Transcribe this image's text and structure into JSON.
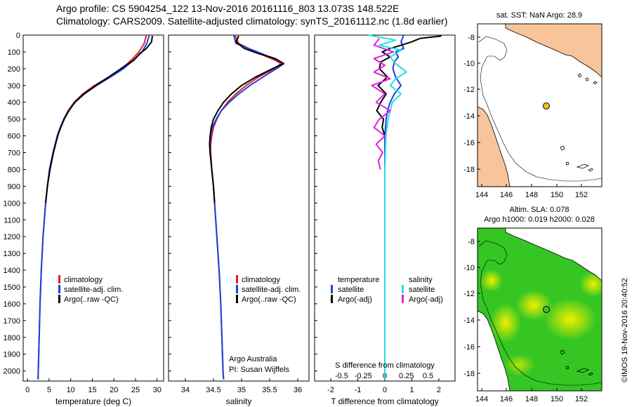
{
  "header": {
    "line1": "Argo profile: CS 5904254_122 13-Nov-2016 20161116_803 13.073S 148.522E",
    "line2": "Climatology: CARS2009. Satellite-adjusted climatology: synTS_20161112.nc (1.8d earlier)"
  },
  "colors": {
    "clim": "#e8201c",
    "sat": "#1f3fe0",
    "argo": "#000000",
    "cyan": "#22e0e8",
    "magenta": "#e020e0",
    "land": "#f8c59a",
    "field_green": "#2ec21e",
    "field_yellow": "#f0f000"
  },
  "depth_axis": {
    "ticks": [
      0,
      100,
      200,
      300,
      400,
      500,
      600,
      700,
      800,
      900,
      1000,
      1100,
      1200,
      1300,
      1400,
      1500,
      1600,
      1700,
      1800,
      1900,
      2000
    ],
    "range": [
      0,
      2060
    ]
  },
  "chart_data": [
    {
      "id": "temperature",
      "type": "line",
      "xlabel": "temperature (deg C)",
      "xlim": [
        -1,
        31.5
      ],
      "xticks": [
        0,
        5,
        10,
        15,
        20,
        25,
        30
      ],
      "ylim": [
        0,
        2060
      ],
      "legend": [
        "climatology",
        "satellite-adj. clim.",
        "Argo(..raw -QC)"
      ],
      "series": [
        {
          "name": "climatology",
          "color": "clim",
          "depth": [
            0,
            50,
            100,
            150,
            200,
            250,
            300,
            350,
            400,
            450,
            500,
            550,
            600,
            700,
            800,
            900,
            1000,
            1200,
            1400,
            1600,
            1800,
            2000,
            2050
          ],
          "values": [
            27.5,
            27.0,
            25.8,
            24.0,
            21.8,
            18.8,
            15.5,
            12.8,
            10.8,
            9.4,
            8.4,
            7.6,
            6.9,
            5.9,
            5.1,
            4.6,
            4.2,
            3.6,
            3.2,
            2.9,
            2.7,
            2.5,
            2.45
          ]
        },
        {
          "name": "satellite-adj. clim.",
          "color": "sat",
          "depth": [
            0,
            50,
            100,
            150,
            200,
            250,
            300,
            350,
            400,
            450,
            500,
            550,
            600,
            700,
            800,
            900,
            1000,
            1200,
            1400,
            1600,
            1800,
            2000,
            2050
          ],
          "values": [
            28.2,
            27.6,
            26.5,
            24.5,
            22.2,
            19.2,
            16.0,
            13.2,
            11.0,
            9.5,
            8.4,
            7.6,
            6.9,
            5.9,
            5.1,
            4.6,
            4.2,
            3.6,
            3.2,
            2.9,
            2.7,
            2.5,
            2.45
          ]
        },
        {
          "name": "Argo(..raw -QC)",
          "color": "argo",
          "depth": [
            5,
            40,
            80,
            110,
            150,
            200,
            250,
            300,
            350,
            400,
            450,
            500,
            550,
            600,
            700,
            800,
            900,
            1000
          ],
          "values": [
            28.9,
            28.7,
            27.5,
            26.0,
            24.6,
            21.6,
            18.8,
            15.8,
            13.0,
            11.0,
            9.6,
            8.5,
            7.7,
            7.0,
            6.0,
            5.2,
            4.6,
            4.2
          ]
        }
      ]
    },
    {
      "id": "salinity",
      "type": "line",
      "xlabel": "salinity",
      "xlim": [
        33.7,
        36.2
      ],
      "xticks": [
        34,
        34.5,
        35,
        35.5,
        36
      ],
      "ylim": [
        0,
        2060
      ],
      "legend": [
        "climatology",
        "satellite-adj. clim.",
        "Argo(..raw -QC)"
      ],
      "annotation": [
        "Argo Australia",
        "PI: Susan Wijffels"
      ],
      "series": [
        {
          "name": "climatology",
          "color": "clim",
          "depth": [
            0,
            50,
            100,
            150,
            170,
            200,
            250,
            300,
            350,
            400,
            450,
            500,
            550,
            600,
            650,
            700,
            800,
            900,
            1000,
            1200,
            1400,
            1600,
            1800,
            2000,
            2050
          ],
          "values": [
            34.88,
            34.95,
            35.25,
            35.6,
            35.7,
            35.58,
            35.3,
            35.08,
            34.9,
            34.75,
            34.64,
            34.56,
            34.5,
            34.47,
            34.45,
            34.45,
            34.47,
            34.5,
            34.52,
            34.56,
            34.6,
            34.63,
            34.65,
            34.67,
            34.68
          ]
        },
        {
          "name": "satellite-adj. clim.",
          "color": "sat",
          "depth": [
            0,
            50,
            100,
            150,
            170,
            200,
            250,
            300,
            350,
            400,
            450,
            500,
            550,
            600,
            650,
            700,
            800,
            900,
            1000,
            1200,
            1400,
            1600,
            1800,
            2000,
            2050
          ],
          "values": [
            34.86,
            34.9,
            35.28,
            35.65,
            35.75,
            35.62,
            35.38,
            35.15,
            34.95,
            34.78,
            34.64,
            34.55,
            34.48,
            34.45,
            34.44,
            34.44,
            34.47,
            34.5,
            34.52,
            34.56,
            34.6,
            34.63,
            34.65,
            34.67,
            34.68
          ]
        },
        {
          "name": "Argo(..raw -QC)",
          "color": "argo",
          "depth": [
            5,
            40,
            80,
            110,
            140,
            170,
            200,
            250,
            300,
            350,
            400,
            450,
            500,
            550,
            600,
            650,
            700,
            800,
            900,
            1000
          ],
          "values": [
            34.95,
            34.9,
            35.05,
            35.3,
            35.6,
            35.75,
            35.55,
            35.25,
            35.0,
            34.82,
            34.68,
            34.58,
            34.5,
            34.46,
            34.44,
            34.43,
            34.44,
            34.47,
            34.5,
            34.52
          ]
        }
      ]
    },
    {
      "id": "difference",
      "type": "line",
      "xlabel_top": "S difference from climatology",
      "xlabel": "T difference from climatology",
      "t_xlim": [
        -2.6,
        2.6
      ],
      "t_xticks": [
        -2,
        -1,
        0,
        1,
        2
      ],
      "s_xticks": [
        "-0.5",
        "-0.25",
        "0",
        "0.25",
        "0.5"
      ],
      "ylim": [
        0,
        2060
      ],
      "legend_t": {
        "heading": "temperature",
        "items": [
          "satellite",
          "Argo(-adj)"
        ]
      },
      "legend_s": {
        "heading": "salinity",
        "items": [
          "satellite",
          "Argo(-adj)"
        ]
      },
      "series": [
        {
          "name": "T satellite",
          "color": "sat",
          "depth": [
            0,
            40,
            80,
            100,
            130,
            160,
            200,
            250,
            300,
            350,
            400,
            450,
            500,
            600,
            700,
            800,
            900,
            1000,
            1100,
            1500,
            2000,
            2050
          ],
          "values": [
            0.7,
            0.6,
            0.7,
            0.4,
            0.5,
            0.35,
            0.3,
            0.4,
            0.6,
            0.35,
            0.2,
            0.1,
            0.05,
            0.0,
            0.0,
            0.0,
            0.0,
            0.0,
            0.0,
            0.0,
            0.0,
            0.0
          ]
        },
        {
          "name": "T Argo(-adj)",
          "color": "argo",
          "depth": [
            5,
            20,
            40,
            60,
            80,
            100,
            130,
            160,
            200,
            250,
            300,
            350,
            400,
            450,
            500,
            550,
            600
          ],
          "values": [
            2.1,
            1.3,
            1.0,
            0.6,
            0.2,
            -0.1,
            0.2,
            -0.15,
            -0.2,
            0.1,
            -0.25,
            0.05,
            -0.15,
            -0.3,
            -0.05,
            -0.1,
            0.0
          ]
        },
        {
          "name": "S satellite",
          "color": "cyan",
          "depth": [
            0,
            30,
            60,
            90,
            130,
            170,
            220,
            260,
            300,
            350,
            400,
            500,
            600,
            800,
            1000,
            1500,
            2000,
            2050
          ],
          "values": [
            -0.15,
            0.1,
            -0.05,
            0.15,
            0.05,
            0.1,
            0.2,
            0.1,
            0.05,
            0.15,
            0.07,
            0.03,
            0.01,
            0.0,
            0.0,
            0.0,
            0.0,
            0.0
          ]
        },
        {
          "name": "S Argo(-adj)",
          "color": "magenta",
          "depth": [
            20,
            60,
            100,
            140,
            180,
            220,
            260,
            300,
            350,
            400,
            450,
            500,
            550,
            600,
            650,
            700,
            750,
            800
          ],
          "values": [
            -0.05,
            -0.1,
            0.08,
            -0.1,
            0.0,
            -0.1,
            0.05,
            -0.12,
            0.0,
            -0.08,
            0.05,
            -0.05,
            -0.1,
            0.0,
            -0.08,
            -0.02,
            -0.06,
            -0.04
          ]
        }
      ]
    }
  ],
  "maps": {
    "sst": {
      "title": "sat. SST: NaN Argo: 28.9",
      "lon_ticks": [
        "144",
        "146",
        "148",
        "150",
        "152"
      ],
      "lat_ticks": [
        "-8",
        "-10",
        "-12",
        "-14",
        "-16",
        "-18"
      ]
    },
    "sla": {
      "title1": "Altim. SLA: 0.078",
      "title2": "Argo h1000: 0.019 h2000: 0.028",
      "lon_ticks": [
        "144",
        "146",
        "148",
        "150",
        "152"
      ],
      "lat_ticks": [
        "-8",
        "-10",
        "-12",
        "-14",
        "-16",
        "-18"
      ]
    }
  },
  "footer": {
    "stamp": "©IMOS 19-Nov-2016 20:40:52"
  }
}
